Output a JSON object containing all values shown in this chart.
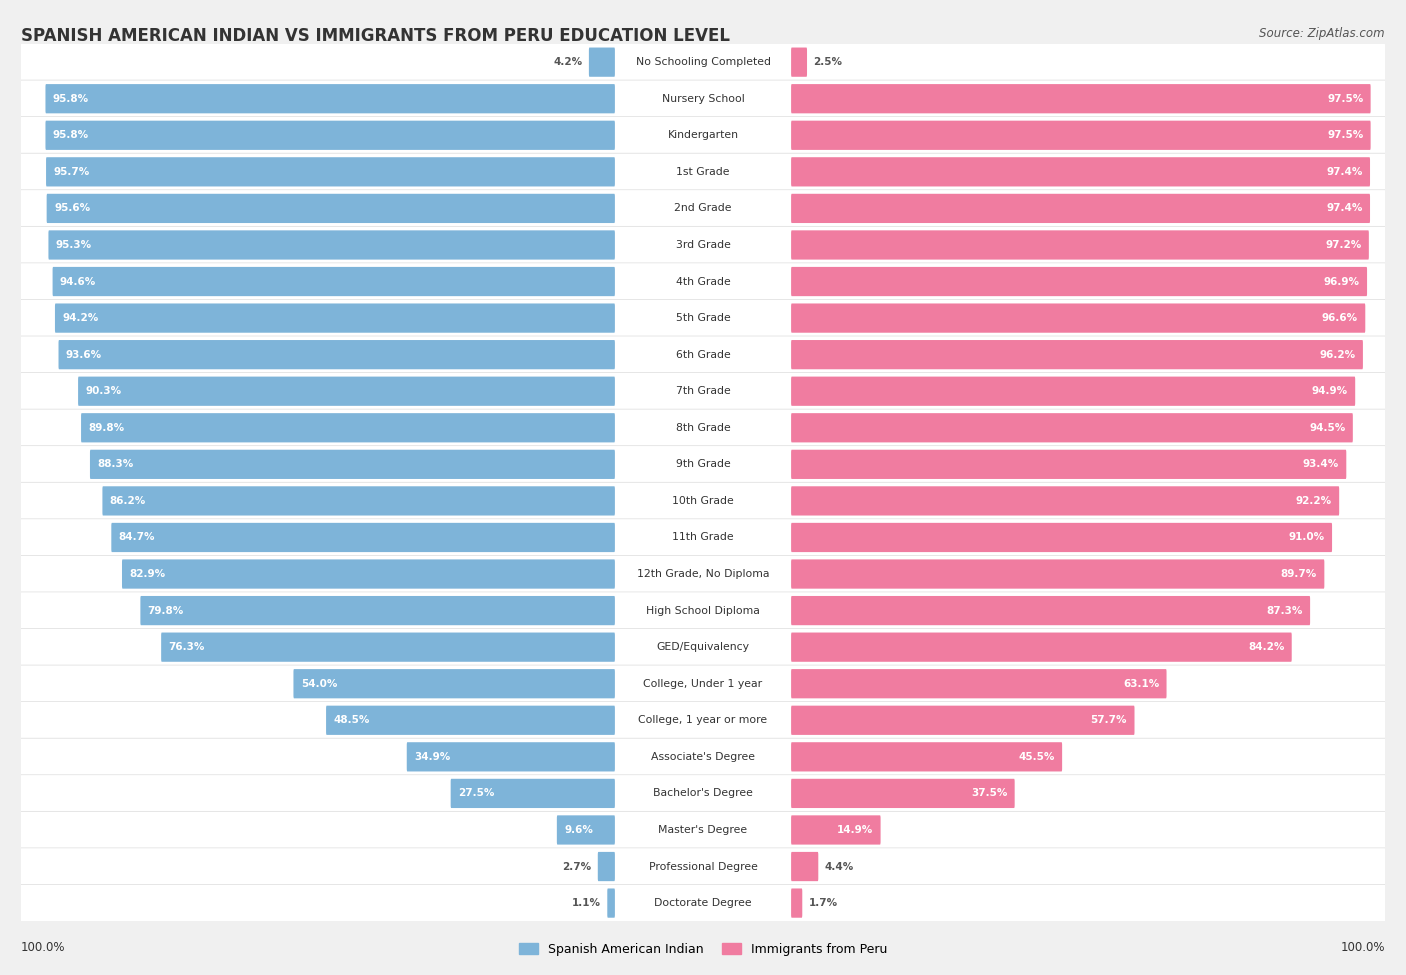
{
  "title": "SPANISH AMERICAN INDIAN VS IMMIGRANTS FROM PERU EDUCATION LEVEL",
  "source": "Source: ZipAtlas.com",
  "categories": [
    "No Schooling Completed",
    "Nursery School",
    "Kindergarten",
    "1st Grade",
    "2nd Grade",
    "3rd Grade",
    "4th Grade",
    "5th Grade",
    "6th Grade",
    "7th Grade",
    "8th Grade",
    "9th Grade",
    "10th Grade",
    "11th Grade",
    "12th Grade, No Diploma",
    "High School Diploma",
    "GED/Equivalency",
    "College, Under 1 year",
    "College, 1 year or more",
    "Associate's Degree",
    "Bachelor's Degree",
    "Master's Degree",
    "Professional Degree",
    "Doctorate Degree"
  ],
  "left_values": [
    4.2,
    95.8,
    95.8,
    95.7,
    95.6,
    95.3,
    94.6,
    94.2,
    93.6,
    90.3,
    89.8,
    88.3,
    86.2,
    84.7,
    82.9,
    79.8,
    76.3,
    54.0,
    48.5,
    34.9,
    27.5,
    9.6,
    2.7,
    1.1
  ],
  "right_values": [
    2.5,
    97.5,
    97.5,
    97.4,
    97.4,
    97.2,
    96.9,
    96.6,
    96.2,
    94.9,
    94.5,
    93.4,
    92.2,
    91.0,
    89.7,
    87.3,
    84.2,
    63.1,
    57.7,
    45.5,
    37.5,
    14.9,
    4.4,
    1.7
  ],
  "left_color": "#7EB4D9",
  "right_color": "#F07CA0",
  "bg_color": "#F0F0F0",
  "bar_bg_color": "#FFFFFF",
  "legend_left": "Spanish American Indian",
  "legend_right": "Immigrants from Peru"
}
